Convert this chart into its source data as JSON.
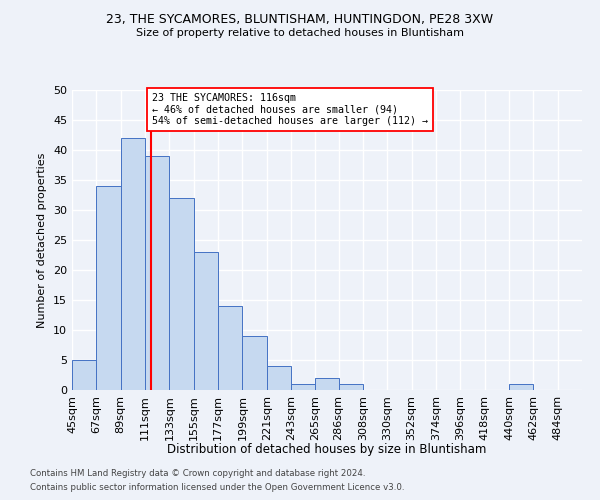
{
  "title1": "23, THE SYCAMORES, BLUNTISHAM, HUNTINGDON, PE28 3XW",
  "title2": "Size of property relative to detached houses in Bluntisham",
  "xlabel": "Distribution of detached houses by size in Bluntisham",
  "ylabel": "Number of detached properties",
  "bin_edges": [
    45,
    67,
    89,
    111,
    133,
    155,
    177,
    199,
    221,
    243,
    265,
    286,
    308,
    330,
    352,
    374,
    396,
    418,
    440,
    462,
    484
  ],
  "bin_labels": [
    "45sqm",
    "67sqm",
    "89sqm",
    "111sqm",
    "133sqm",
    "155sqm",
    "177sqm",
    "199sqm",
    "221sqm",
    "243sqm",
    "265sqm",
    "286sqm",
    "308sqm",
    "330sqm",
    "352sqm",
    "374sqm",
    "396sqm",
    "418sqm",
    "440sqm",
    "462sqm",
    "484sqm"
  ],
  "counts": [
    5,
    34,
    42,
    39,
    32,
    23,
    14,
    9,
    4,
    1,
    2,
    1,
    0,
    0,
    0,
    0,
    0,
    0,
    1,
    0,
    0
  ],
  "bar_color": "#c6d9f0",
  "bar_edge_color": "#4472c4",
  "vline_x": 116,
  "vline_color": "#ff0000",
  "ylim": [
    0,
    50
  ],
  "yticks": [
    0,
    5,
    10,
    15,
    20,
    25,
    30,
    35,
    40,
    45,
    50
  ],
  "annotation_text": "23 THE SYCAMORES: 116sqm\n← 46% of detached houses are smaller (94)\n54% of semi-detached houses are larger (112) →",
  "annotation_box_color": "#ffffff",
  "annotation_box_edge": "#ff0000",
  "footer1": "Contains HM Land Registry data © Crown copyright and database right 2024.",
  "footer2": "Contains public sector information licensed under the Open Government Licence v3.0.",
  "bg_color": "#eef2f9",
  "grid_color": "#ffffff"
}
